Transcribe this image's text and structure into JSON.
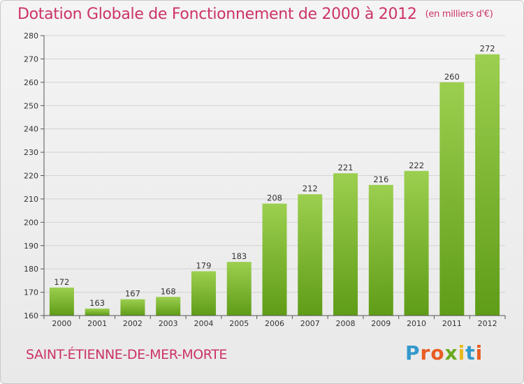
{
  "title": "Dotation Globale de Fonctionnement de 2000 à 2012",
  "unit_note": "(en milliers d'€)",
  "commune": "SAINT-ÉTIENNE-DE-MER-MORTE",
  "logo": {
    "text": "Proxiti",
    "letter_colors": [
      "#3399cc",
      "#e85d23",
      "#e85d23",
      "#6aaa1f",
      "#e8b820",
      "#3399cc",
      "#e85d23"
    ]
  },
  "colors": {
    "title": "#cc3366",
    "bar_light": "#9ccf4f",
    "bar_dark": "#5f9c17",
    "grid": "#d2d2d2",
    "axis": "#555555"
  },
  "chart_data": {
    "type": "bar",
    "categories": [
      "2000",
      "2001",
      "2002",
      "2003",
      "2004",
      "2005",
      "2006",
      "2007",
      "2008",
      "2009",
      "2010",
      "2011",
      "2012"
    ],
    "values": [
      172,
      163,
      167,
      168,
      179,
      183,
      208,
      212,
      221,
      216,
      222,
      260,
      272
    ],
    "ylim": [
      160,
      280
    ],
    "yticks": [
      160,
      170,
      180,
      190,
      200,
      210,
      220,
      230,
      240,
      250,
      260,
      270,
      280
    ],
    "grid": true
  }
}
